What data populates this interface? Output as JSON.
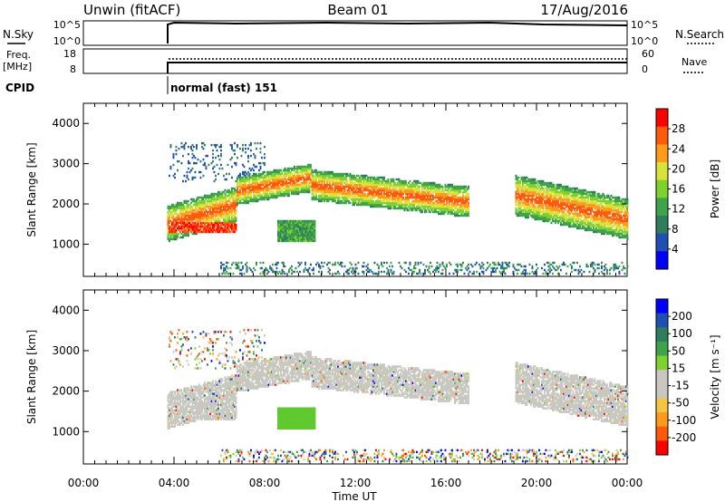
{
  "header": {
    "site": "Unwin (fitACF)",
    "beam": "Beam 01",
    "date": "17/Aug/2016"
  },
  "strip_labels": {
    "nsky": "N.Sky",
    "nsky_top": "10^5",
    "nsky_bot": "10^0",
    "nsearch": "N.Search",
    "nsearch_top": "10^5",
    "nsearch_bot": "10^0",
    "freq": "Freq.",
    "freq_unit": "[MHz]",
    "freq_top": "18",
    "freq_bot": "8",
    "nave": "Nave",
    "nave_top": "60",
    "nave_bot": "0",
    "cpid": "CPID",
    "cpid_value": "normal (fast) 151"
  },
  "colors": {
    "power_scale": [
      "#0000ff",
      "#1f4fb4",
      "#2e7d5e",
      "#3fa34a",
      "#7fd12e",
      "#d8e23a",
      "#ff9a1a",
      "#ff5a0a",
      "#ff0000"
    ],
    "velocity_scale": [
      "#ff0000",
      "#ff5a0a",
      "#ff9a1a",
      "#f4c542",
      "#c8c8c0",
      "#c8c8c0",
      "#7fd12e",
      "#3fa34a",
      "#2e7d5e",
      "#1f4fb4",
      "#0000ff"
    ],
    "ground_scatter": "#c8c8c0"
  },
  "chart_data": [
    {
      "type": "heatmap",
      "name": "power",
      "ylabel": "Slant Range [km]",
      "yticks": [
        1000,
        2000,
        3000,
        4000
      ],
      "ylim": [
        200,
        4500
      ],
      "colorbar_label": "Power [dB]",
      "colorbar_ticks": [
        4,
        8,
        12,
        16,
        20,
        24,
        28
      ],
      "clim": [
        0,
        32
      ],
      "features": [
        {
          "t0": 3.7,
          "t1": 7.0,
          "r0": 1250,
          "r1": 2000,
          "level": 28
        },
        {
          "t0": 6.5,
          "t1": 10.0,
          "r0": 2200,
          "r1": 2900,
          "level": 22
        },
        {
          "t0": 8.5,
          "t1": 10.3,
          "r0": 1050,
          "r1": 1600,
          "level": 12
        },
        {
          "t0": 10.0,
          "t1": 17.0,
          "r0": 1900,
          "r1": 2900,
          "level": 14
        },
        {
          "t0": 19.0,
          "t1": 24.0,
          "r0": 1250,
          "r1": 2700,
          "level": 16
        }
      ]
    },
    {
      "type": "heatmap",
      "name": "velocity",
      "ylabel": "Slant Range [km]",
      "yticks": [
        1000,
        2000,
        3000,
        4000
      ],
      "ylim": [
        200,
        4500
      ],
      "colorbar_label": "Velocity [m s⁻¹]",
      "colorbar_ticks": [
        200,
        100,
        50,
        15,
        -15,
        -50,
        -100,
        -200
      ],
      "features": [
        {
          "t0": 3.7,
          "t1": 7.0,
          "r0": 1250,
          "r1": 2000,
          "vel": 0
        },
        {
          "t0": 8.5,
          "t1": 10.3,
          "r0": 1150,
          "r1": 1500,
          "vel": 30
        }
      ]
    }
  ],
  "time_axis": {
    "label": "Time UT",
    "ticks": [
      "00:00",
      "04:00",
      "08:00",
      "12:00",
      "16:00",
      "20:00",
      "00:00"
    ]
  }
}
